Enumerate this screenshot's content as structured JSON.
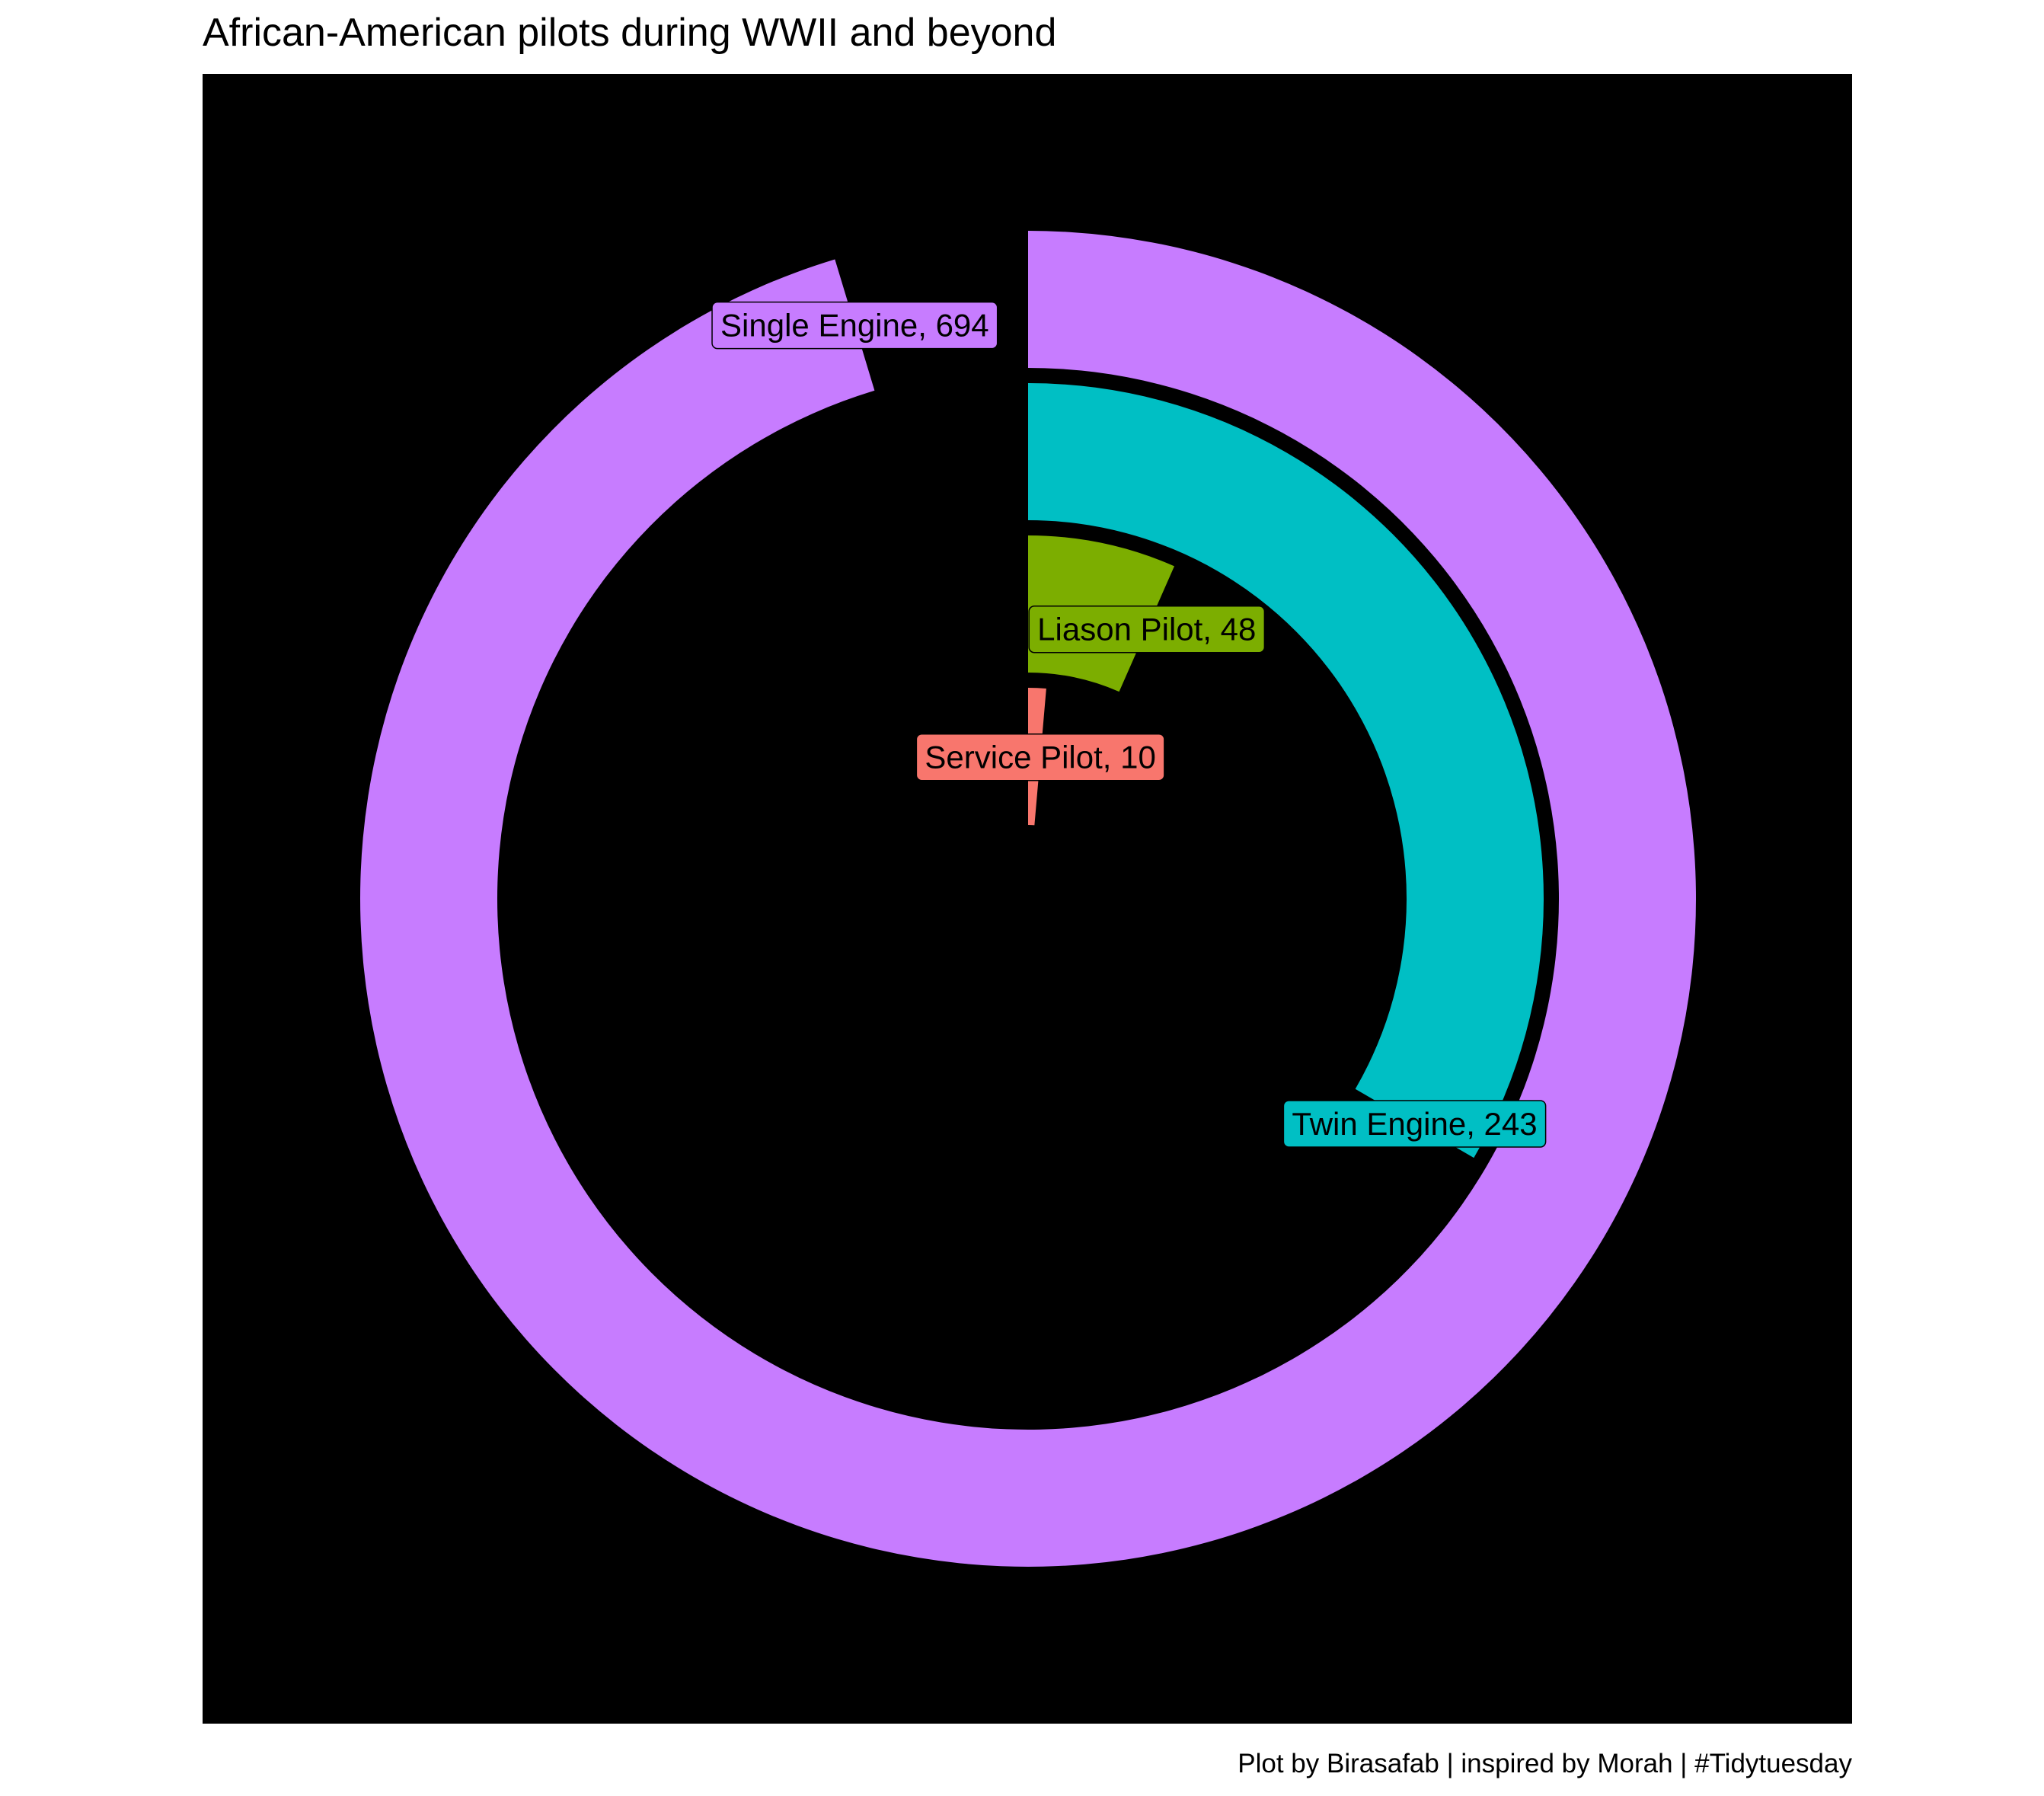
{
  "chart_data": {
    "type": "bar",
    "coord": "polar",
    "title": "African-American pilots during WWII and beyond",
    "caption": "Plot by Birasafab | inspired by Morah | #Tidytuesday",
    "xlabel": "",
    "ylabel": "",
    "ylim": [
      0,
      728
    ],
    "grid": false,
    "legend": "none",
    "panel_background": "#000000",
    "categories": [
      "Service Pilot",
      "Liason Pilot",
      "Twin Engine",
      "Single Engine"
    ],
    "values": [
      10,
      48,
      243,
      694
    ],
    "labels": [
      "Service Pilot, 10",
      "Liason Pilot, 48",
      "Twin Engine, 243",
      "Single Engine, 694"
    ],
    "colors": [
      "#F8766D",
      "#7CAE00",
      "#00BFC4",
      "#C77CFF"
    ]
  }
}
